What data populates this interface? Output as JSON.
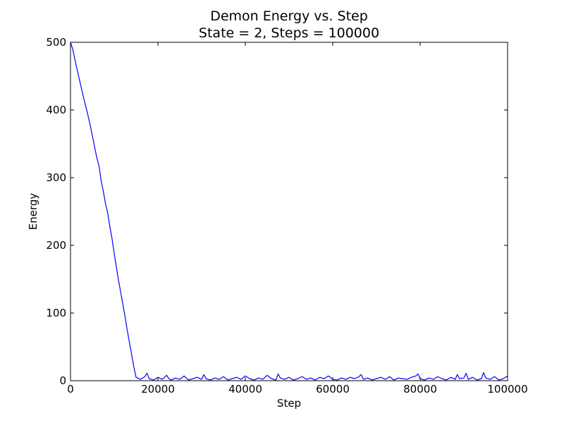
{
  "chart_data": {
    "type": "line",
    "title": "Demon Energy vs. Step",
    "subtitle": "State = 2, Steps = 100000",
    "xlabel": "Step",
    "ylabel": "Energy",
    "xlim": [
      0,
      100000
    ],
    "ylim": [
      0,
      500
    ],
    "xticks": [
      0,
      20000,
      40000,
      60000,
      80000,
      100000
    ],
    "yticks": [
      0,
      100,
      200,
      300,
      400,
      500
    ],
    "xtick_labels": [
      "0",
      "20000",
      "40000",
      "60000",
      "80000",
      "100000"
    ],
    "ytick_labels": [
      "0",
      "100",
      "200",
      "300",
      "400",
      "500"
    ],
    "grid": false,
    "legend": "none",
    "series": [
      {
        "color": "#0000ff",
        "x": [
          0,
          500,
          1000,
          1500,
          2000,
          2500,
          3000,
          3500,
          4000,
          4500,
          5000,
          5500,
          6000,
          6500,
          7000,
          7500,
          8000,
          8500,
          9000,
          9500,
          10000,
          10500,
          11000,
          11500,
          12000,
          12500,
          13000,
          13500,
          14000,
          14500,
          15000,
          16000,
          17000,
          17500,
          18000,
          19000,
          20000,
          21000,
          22000,
          22500,
          23000,
          24000,
          25000,
          26000,
          27000,
          28000,
          29000,
          30000,
          30500,
          31000,
          32000,
          33000,
          34000,
          35000,
          36000,
          37000,
          38000,
          39000,
          40000,
          41000,
          42000,
          43000,
          44000,
          45000,
          46000,
          47000,
          47500,
          48000,
          49000,
          50000,
          51000,
          52000,
          53000,
          54000,
          55000,
          56000,
          57000,
          58000,
          59000,
          60000,
          61000,
          62000,
          63000,
          64000,
          65000,
          66000,
          66500,
          67000,
          68000,
          69000,
          70000,
          71000,
          72000,
          73000,
          74000,
          75000,
          76000,
          77000,
          78000,
          79000,
          79500,
          80000,
          81000,
          82000,
          83000,
          84000,
          85000,
          86000,
          87000,
          88000,
          88500,
          89000,
          90000,
          90500,
          91000,
          92000,
          93000,
          94000,
          94500,
          95000,
          96000,
          97000,
          98000,
          99000,
          100000
        ],
        "y": [
          500,
          490,
          475,
          460,
          446,
          432,
          418,
          405,
          392,
          378,
          362,
          346,
          330,
          318,
          296,
          280,
          262,
          248,
          228,
          210,
          188,
          168,
          148,
          130,
          112,
          94,
          74,
          56,
          38,
          20,
          5,
          2,
          6,
          11,
          3,
          1,
          5,
          2,
          8,
          3,
          1,
          4,
          2,
          7,
          1,
          3,
          5,
          2,
          9,
          3,
          1,
          4,
          2,
          6,
          1,
          3,
          5,
          2,
          7,
          3,
          1,
          4,
          2,
          8,
          3,
          1,
          10,
          4,
          2,
          5,
          1,
          3,
          6,
          2,
          4,
          1,
          5,
          3,
          7,
          2,
          1,
          4,
          2,
          5,
          3,
          6,
          9,
          2,
          4,
          1,
          3,
          5,
          2,
          6,
          1,
          4,
          3,
          2,
          5,
          7,
          10,
          3,
          1,
          4,
          2,
          6,
          3,
          1,
          5,
          2,
          9,
          3,
          4,
          11,
          2,
          5,
          1,
          3,
          12,
          4,
          2,
          6,
          1,
          3,
          7
        ]
      }
    ]
  }
}
